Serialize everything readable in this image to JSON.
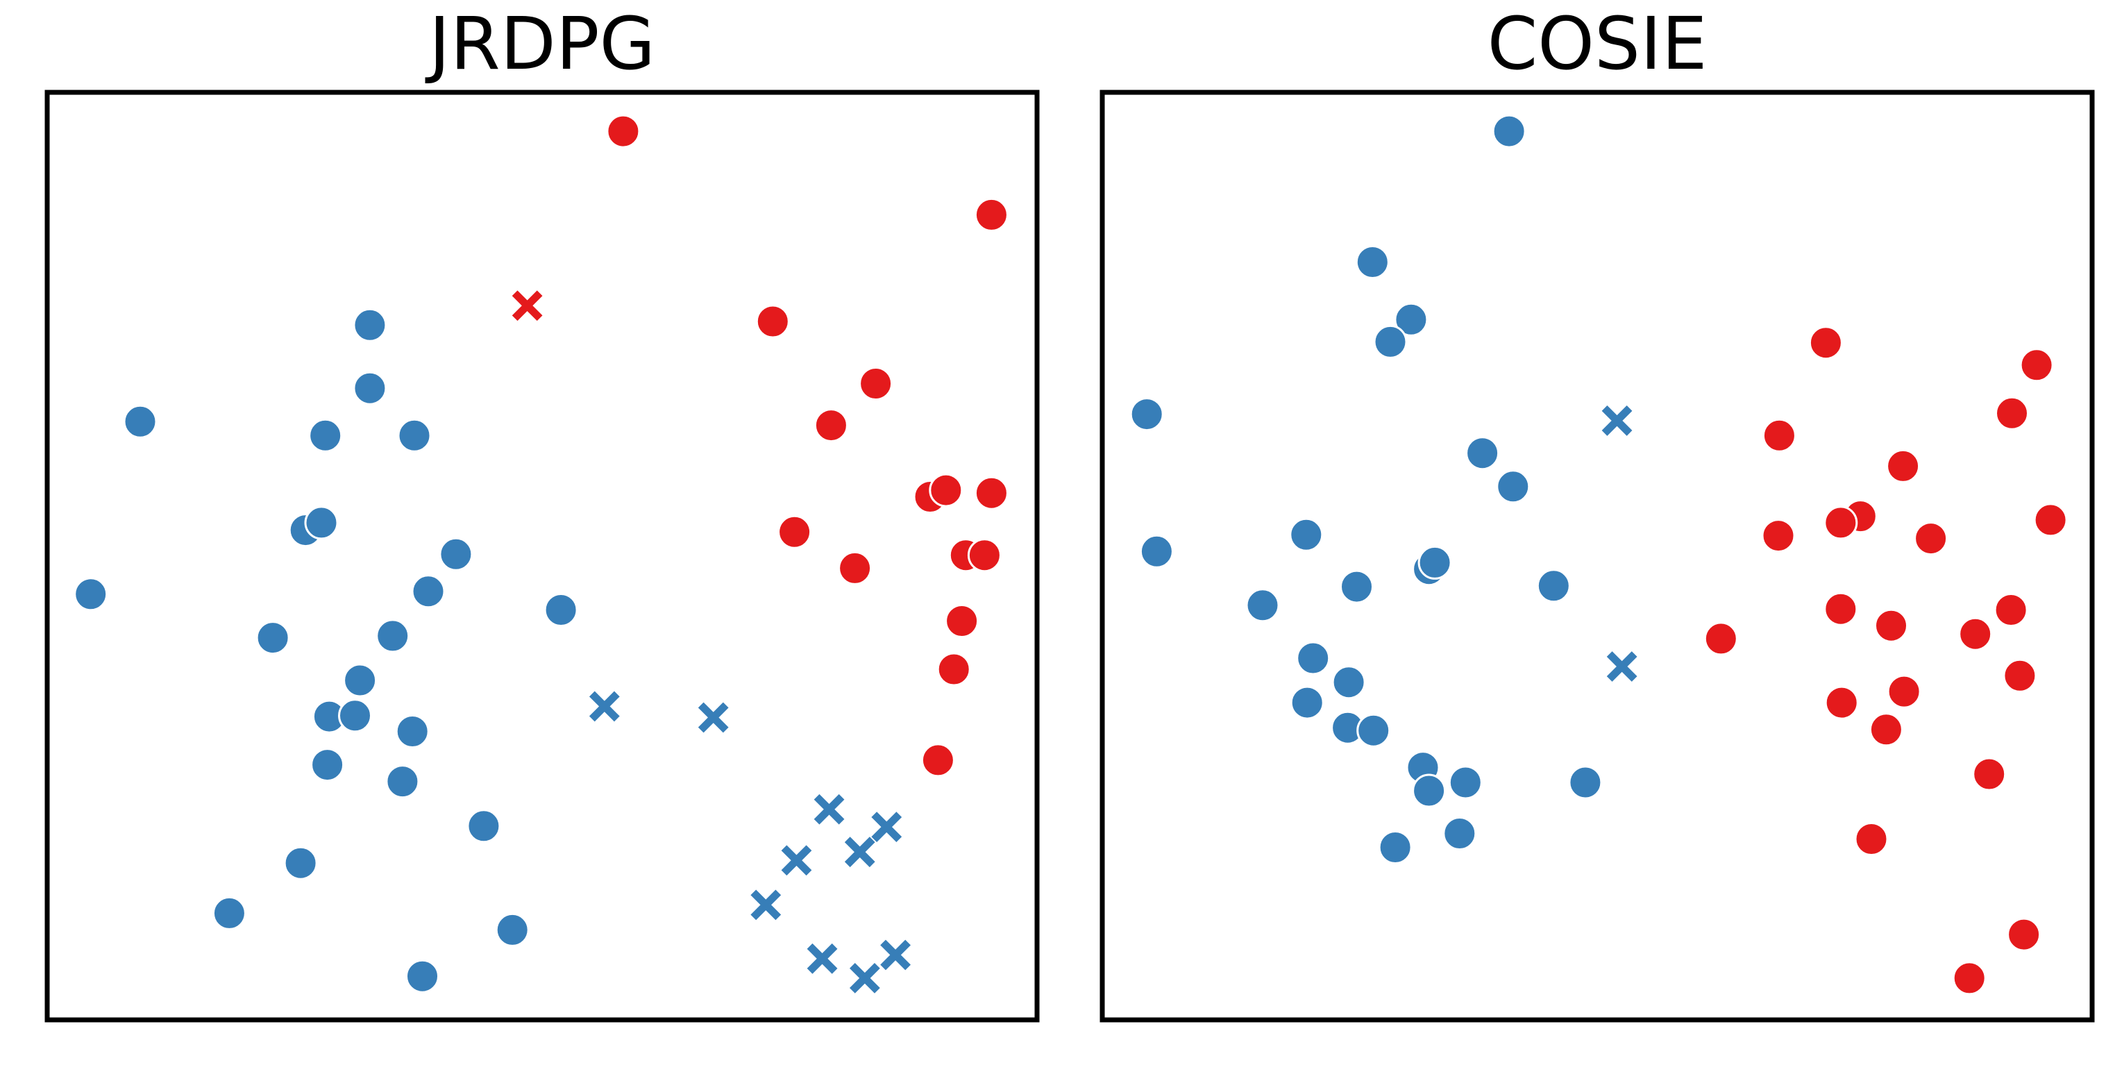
{
  "colors": {
    "blue": "#377eb8",
    "red": "#e41a1c"
  },
  "marker_shapes": {
    "circle": "circle-marker",
    "cross": "x-marker"
  },
  "chart_data": [
    {
      "type": "scatter",
      "title": "JRDPG",
      "xlabel": "",
      "ylabel": "",
      "xlim": [
        0,
        100
      ],
      "ylim": [
        0,
        100
      ],
      "grid": false,
      "ticks": false,
      "points": [
        {
          "x": 58.2,
          "y": 95.8,
          "color": "red",
          "marker": "circle"
        },
        {
          "x": 95.4,
          "y": 86.8,
          "color": "red",
          "marker": "circle"
        },
        {
          "x": 73.3,
          "y": 75.3,
          "color": "red",
          "marker": "circle"
        },
        {
          "x": 83.7,
          "y": 68.6,
          "color": "red",
          "marker": "circle"
        },
        {
          "x": 79.2,
          "y": 64.1,
          "color": "red",
          "marker": "circle"
        },
        {
          "x": 89.2,
          "y": 56.4,
          "color": "red",
          "marker": "circle"
        },
        {
          "x": 90.8,
          "y": 57.1,
          "color": "red",
          "marker": "circle"
        },
        {
          "x": 95.4,
          "y": 56.8,
          "color": "red",
          "marker": "circle"
        },
        {
          "x": 75.5,
          "y": 52.6,
          "color": "red",
          "marker": "circle"
        },
        {
          "x": 81.6,
          "y": 48.7,
          "color": "red",
          "marker": "circle"
        },
        {
          "x": 92.8,
          "y": 50.1,
          "color": "red",
          "marker": "circle"
        },
        {
          "x": 94.7,
          "y": 50.1,
          "color": "red",
          "marker": "circle"
        },
        {
          "x": 92.4,
          "y": 43.0,
          "color": "red",
          "marker": "circle"
        },
        {
          "x": 91.6,
          "y": 37.8,
          "color": "red",
          "marker": "circle"
        },
        {
          "x": 90.0,
          "y": 28.0,
          "color": "red",
          "marker": "circle"
        },
        {
          "x": 48.5,
          "y": 77.0,
          "color": "red",
          "marker": "cross"
        },
        {
          "x": 32.6,
          "y": 74.9,
          "color": "blue",
          "marker": "circle"
        },
        {
          "x": 32.6,
          "y": 68.1,
          "color": "blue",
          "marker": "circle"
        },
        {
          "x": 9.4,
          "y": 64.5,
          "color": "blue",
          "marker": "circle"
        },
        {
          "x": 28.1,
          "y": 63.0,
          "color": "blue",
          "marker": "circle"
        },
        {
          "x": 37.1,
          "y": 63.0,
          "color": "blue",
          "marker": "circle"
        },
        {
          "x": 26.1,
          "y": 52.8,
          "color": "blue",
          "marker": "circle"
        },
        {
          "x": 27.7,
          "y": 53.6,
          "color": "blue",
          "marker": "circle"
        },
        {
          "x": 41.3,
          "y": 50.2,
          "color": "blue",
          "marker": "circle"
        },
        {
          "x": 38.5,
          "y": 46.2,
          "color": "blue",
          "marker": "circle"
        },
        {
          "x": 4.4,
          "y": 45.9,
          "color": "blue",
          "marker": "circle"
        },
        {
          "x": 51.9,
          "y": 44.2,
          "color": "blue",
          "marker": "circle"
        },
        {
          "x": 22.8,
          "y": 41.2,
          "color": "blue",
          "marker": "circle"
        },
        {
          "x": 34.9,
          "y": 41.4,
          "color": "blue",
          "marker": "circle"
        },
        {
          "x": 31.6,
          "y": 36.6,
          "color": "blue",
          "marker": "circle"
        },
        {
          "x": 28.5,
          "y": 32.7,
          "color": "blue",
          "marker": "circle"
        },
        {
          "x": 31.1,
          "y": 32.8,
          "color": "blue",
          "marker": "circle"
        },
        {
          "x": 36.9,
          "y": 31.1,
          "color": "blue",
          "marker": "circle"
        },
        {
          "x": 28.3,
          "y": 27.5,
          "color": "blue",
          "marker": "circle"
        },
        {
          "x": 35.9,
          "y": 25.7,
          "color": "blue",
          "marker": "circle"
        },
        {
          "x": 44.1,
          "y": 20.9,
          "color": "blue",
          "marker": "circle"
        },
        {
          "x": 25.6,
          "y": 16.9,
          "color": "blue",
          "marker": "circle"
        },
        {
          "x": 18.4,
          "y": 11.5,
          "color": "blue",
          "marker": "circle"
        },
        {
          "x": 47.0,
          "y": 9.7,
          "color": "blue",
          "marker": "circle"
        },
        {
          "x": 37.9,
          "y": 4.7,
          "color": "blue",
          "marker": "circle"
        },
        {
          "x": 56.3,
          "y": 33.8,
          "color": "blue",
          "marker": "cross"
        },
        {
          "x": 67.3,
          "y": 32.6,
          "color": "blue",
          "marker": "cross"
        },
        {
          "x": 79.0,
          "y": 22.7,
          "color": "blue",
          "marker": "cross"
        },
        {
          "x": 84.8,
          "y": 20.8,
          "color": "blue",
          "marker": "cross"
        },
        {
          "x": 75.7,
          "y": 17.2,
          "color": "blue",
          "marker": "cross"
        },
        {
          "x": 82.1,
          "y": 18.1,
          "color": "blue",
          "marker": "cross"
        },
        {
          "x": 72.6,
          "y": 12.4,
          "color": "blue",
          "marker": "cross"
        },
        {
          "x": 78.3,
          "y": 6.6,
          "color": "blue",
          "marker": "cross"
        },
        {
          "x": 85.7,
          "y": 7.0,
          "color": "blue",
          "marker": "cross"
        },
        {
          "x": 82.6,
          "y": 4.5,
          "color": "blue",
          "marker": "cross"
        }
      ]
    },
    {
      "type": "scatter",
      "title": "COSIE",
      "xlabel": "",
      "ylabel": "",
      "xlim": [
        0,
        100
      ],
      "ylim": [
        0,
        100
      ],
      "grid": false,
      "ticks": false,
      "points": [
        {
          "x": 41.1,
          "y": 95.8,
          "color": "blue",
          "marker": "circle"
        },
        {
          "x": 27.3,
          "y": 81.7,
          "color": "blue",
          "marker": "circle"
        },
        {
          "x": 31.2,
          "y": 75.5,
          "color": "blue",
          "marker": "circle"
        },
        {
          "x": 29.1,
          "y": 73.1,
          "color": "blue",
          "marker": "circle"
        },
        {
          "x": 4.5,
          "y": 65.3,
          "color": "blue",
          "marker": "circle"
        },
        {
          "x": 38.4,
          "y": 61.1,
          "color": "blue",
          "marker": "circle"
        },
        {
          "x": 41.5,
          "y": 57.5,
          "color": "blue",
          "marker": "circle"
        },
        {
          "x": 20.6,
          "y": 52.3,
          "color": "blue",
          "marker": "circle"
        },
        {
          "x": 5.5,
          "y": 50.5,
          "color": "blue",
          "marker": "circle"
        },
        {
          "x": 33.0,
          "y": 48.6,
          "color": "blue",
          "marker": "circle"
        },
        {
          "x": 33.6,
          "y": 49.3,
          "color": "blue",
          "marker": "circle"
        },
        {
          "x": 25.7,
          "y": 46.7,
          "color": "blue",
          "marker": "circle"
        },
        {
          "x": 45.6,
          "y": 46.8,
          "color": "blue",
          "marker": "circle"
        },
        {
          "x": 16.2,
          "y": 44.7,
          "color": "blue",
          "marker": "circle"
        },
        {
          "x": 21.3,
          "y": 39.0,
          "color": "blue",
          "marker": "circle"
        },
        {
          "x": 24.9,
          "y": 36.4,
          "color": "blue",
          "marker": "circle"
        },
        {
          "x": 20.7,
          "y": 34.2,
          "color": "blue",
          "marker": "circle"
        },
        {
          "x": 24.8,
          "y": 31.5,
          "color": "blue",
          "marker": "circle"
        },
        {
          "x": 27.4,
          "y": 31.2,
          "color": "blue",
          "marker": "circle"
        },
        {
          "x": 32.4,
          "y": 27.2,
          "color": "blue",
          "marker": "circle"
        },
        {
          "x": 36.7,
          "y": 25.6,
          "color": "blue",
          "marker": "circle"
        },
        {
          "x": 33.0,
          "y": 24.7,
          "color": "blue",
          "marker": "circle"
        },
        {
          "x": 48.8,
          "y": 25.6,
          "color": "blue",
          "marker": "circle"
        },
        {
          "x": 36.1,
          "y": 20.1,
          "color": "blue",
          "marker": "circle"
        },
        {
          "x": 29.6,
          "y": 18.6,
          "color": "blue",
          "marker": "circle"
        },
        {
          "x": 52.0,
          "y": 64.6,
          "color": "blue",
          "marker": "cross"
        },
        {
          "x": 52.5,
          "y": 38.1,
          "color": "blue",
          "marker": "cross"
        },
        {
          "x": 73.1,
          "y": 73.0,
          "color": "red",
          "marker": "circle"
        },
        {
          "x": 94.4,
          "y": 70.6,
          "color": "red",
          "marker": "circle"
        },
        {
          "x": 91.9,
          "y": 65.4,
          "color": "red",
          "marker": "circle"
        },
        {
          "x": 68.4,
          "y": 63.0,
          "color": "red",
          "marker": "circle"
        },
        {
          "x": 80.9,
          "y": 59.7,
          "color": "red",
          "marker": "circle"
        },
        {
          "x": 76.6,
          "y": 54.3,
          "color": "red",
          "marker": "circle"
        },
        {
          "x": 74.6,
          "y": 53.6,
          "color": "red",
          "marker": "circle"
        },
        {
          "x": 95.8,
          "y": 53.9,
          "color": "red",
          "marker": "circle"
        },
        {
          "x": 68.3,
          "y": 52.2,
          "color": "red",
          "marker": "circle"
        },
        {
          "x": 83.7,
          "y": 51.9,
          "color": "red",
          "marker": "circle"
        },
        {
          "x": 74.6,
          "y": 44.3,
          "color": "red",
          "marker": "circle"
        },
        {
          "x": 91.8,
          "y": 44.2,
          "color": "red",
          "marker": "circle"
        },
        {
          "x": 79.7,
          "y": 42.5,
          "color": "red",
          "marker": "circle"
        },
        {
          "x": 88.2,
          "y": 41.6,
          "color": "red",
          "marker": "circle"
        },
        {
          "x": 62.5,
          "y": 41.1,
          "color": "red",
          "marker": "circle"
        },
        {
          "x": 92.7,
          "y": 37.1,
          "color": "red",
          "marker": "circle"
        },
        {
          "x": 81.0,
          "y": 35.4,
          "color": "red",
          "marker": "circle"
        },
        {
          "x": 74.7,
          "y": 34.2,
          "color": "red",
          "marker": "circle"
        },
        {
          "x": 79.2,
          "y": 31.3,
          "color": "red",
          "marker": "circle"
        },
        {
          "x": 89.6,
          "y": 26.5,
          "color": "red",
          "marker": "circle"
        },
        {
          "x": 77.7,
          "y": 19.5,
          "color": "red",
          "marker": "circle"
        },
        {
          "x": 93.1,
          "y": 9.2,
          "color": "red",
          "marker": "circle"
        },
        {
          "x": 87.6,
          "y": 4.5,
          "color": "red",
          "marker": "circle"
        }
      ]
    }
  ]
}
